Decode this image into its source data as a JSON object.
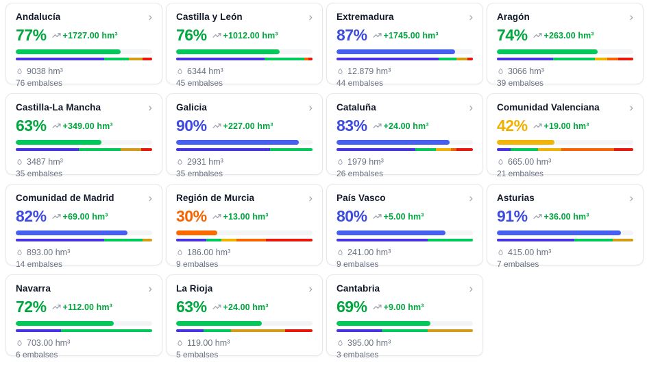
{
  "icons": {
    "chevron": "›"
  },
  "colors": {
    "status_text": {
      "green": "#00a63e",
      "blue": "#3d4be0",
      "yellow": "#efb100",
      "orange": "#f56300"
    },
    "status_bar": {
      "green": "#00c95a",
      "blue": "#4560f0",
      "yellow": "#f0b505",
      "orange": "#fb6900"
    },
    "segments": {
      "i": "#4733df",
      "g": "#00c95a",
      "y": "#f0b100",
      "a": "#d29b18",
      "o": "#f76300",
      "r": "#e7180b"
    },
    "segment_names": {
      "i": "indigo",
      "g": "green",
      "y": "yellow",
      "a": "amber",
      "o": "orange",
      "r": "red"
    },
    "track": "#f3f4f6"
  },
  "regions": [
    {
      "name": "Andalucía",
      "pct": 77,
      "pct_label": "77%",
      "status": "green",
      "change": "+1727.00 hm³",
      "volume": "9038 hm³",
      "reservoirs": "76 embalses",
      "dist": [
        [
          "i",
          65
        ],
        [
          "g",
          18
        ],
        [
          "a",
          10
        ],
        [
          "r",
          7
        ]
      ]
    },
    {
      "name": "Castilla y León",
      "pct": 76,
      "pct_label": "76%",
      "status": "green",
      "change": "+1012.00 hm³",
      "volume": "6344 hm³",
      "reservoirs": "45 embalses",
      "dist": [
        [
          "i",
          65
        ],
        [
          "g",
          29
        ],
        [
          "o",
          3
        ],
        [
          "r",
          3
        ]
      ]
    },
    {
      "name": "Extremadura",
      "pct": 87,
      "pct_label": "87%",
      "status": "blue",
      "change": "+1745.00 hm³",
      "volume": "12.879 hm³",
      "reservoirs": "44 embalses",
      "dist": [
        [
          "i",
          75
        ],
        [
          "g",
          13
        ],
        [
          "a",
          8
        ],
        [
          "r",
          4
        ]
      ]
    },
    {
      "name": "Aragón",
      "pct": 74,
      "pct_label": "74%",
      "status": "green",
      "change": "+263.00 hm³",
      "volume": "3066 hm³",
      "reservoirs": "39 embalses",
      "dist": [
        [
          "i",
          41
        ],
        [
          "g",
          31
        ],
        [
          "y",
          9
        ],
        [
          "o",
          8
        ],
        [
          "r",
          11
        ]
      ]
    },
    {
      "name": "Castilla-La Mancha",
      "pct": 63,
      "pct_label": "63%",
      "status": "green",
      "change": "+349.00 hm³",
      "volume": "3487 hm³",
      "reservoirs": "35 embalses",
      "dist": [
        [
          "i",
          46
        ],
        [
          "g",
          31
        ],
        [
          "a",
          15
        ],
        [
          "r",
          8
        ]
      ]
    },
    {
      "name": "Galicia",
      "pct": 90,
      "pct_label": "90%",
      "status": "blue",
      "change": "+227.00 hm³",
      "volume": "2931 hm³",
      "reservoirs": "35 embalses",
      "dist": [
        [
          "i",
          69
        ],
        [
          "g",
          31
        ]
      ]
    },
    {
      "name": "Cataluña",
      "pct": 83,
      "pct_label": "83%",
      "status": "blue",
      "change": "+24.00 hm³",
      "volume": "1979 hm³",
      "reservoirs": "26 embalses",
      "dist": [
        [
          "i",
          58
        ],
        [
          "g",
          15
        ],
        [
          "y",
          11
        ],
        [
          "o",
          4
        ],
        [
          "r",
          12
        ]
      ]
    },
    {
      "name": "Comunidad Valenciana",
      "pct": 42,
      "pct_label": "42%",
      "status": "yellow",
      "change": "+19.00 hm³",
      "volume": "665.00 hm³",
      "reservoirs": "21 embalses",
      "dist": [
        [
          "i",
          10
        ],
        [
          "g",
          20
        ],
        [
          "y",
          17
        ],
        [
          "o",
          39
        ],
        [
          "r",
          14
        ]
      ]
    },
    {
      "name": "Comunidad de Madrid",
      "pct": 82,
      "pct_label": "82%",
      "status": "blue",
      "change": "+69.00 hm³",
      "volume": "893.00 hm³",
      "reservoirs": "14 embalses",
      "dist": [
        [
          "i",
          65
        ],
        [
          "g",
          28
        ],
        [
          "a",
          7
        ]
      ]
    },
    {
      "name": "Región de Murcia",
      "pct": 30,
      "pct_label": "30%",
      "status": "orange",
      "change": "+13.00 hm³",
      "volume": "186.00 hm³",
      "reservoirs": "9 embalses",
      "dist": [
        [
          "i",
          22
        ],
        [
          "g",
          11
        ],
        [
          "y",
          11
        ],
        [
          "o",
          22
        ],
        [
          "r",
          34
        ]
      ]
    },
    {
      "name": "País Vasco",
      "pct": 80,
      "pct_label": "80%",
      "status": "blue",
      "change": "+5.00 hm³",
      "volume": "241.00 hm³",
      "reservoirs": "9 embalses",
      "dist": [
        [
          "i",
          67
        ],
        [
          "g",
          33
        ]
      ]
    },
    {
      "name": "Asturias",
      "pct": 91,
      "pct_label": "91%",
      "status": "blue",
      "change": "+36.00 hm³",
      "volume": "415.00 hm³",
      "reservoirs": "7 embalses",
      "dist": [
        [
          "i",
          57
        ],
        [
          "g",
          28
        ],
        [
          "a",
          15
        ]
      ]
    },
    {
      "name": "Navarra",
      "pct": 72,
      "pct_label": "72%",
      "status": "green",
      "change": "+112.00 hm³",
      "volume": "703.00 hm³",
      "reservoirs": "6 embalses",
      "dist": [
        [
          "i",
          33
        ],
        [
          "g",
          67
        ]
      ]
    },
    {
      "name": "La Rioja",
      "pct": 63,
      "pct_label": "63%",
      "status": "green",
      "change": "+24.00 hm³",
      "volume": "119.00 hm³",
      "reservoirs": "5 embalses",
      "dist": [
        [
          "i",
          20
        ],
        [
          "g",
          20
        ],
        [
          "a",
          40
        ],
        [
          "r",
          20
        ]
      ]
    },
    {
      "name": "Cantabria",
      "pct": 69,
      "pct_label": "69%",
      "status": "green",
      "change": "+9.00 hm³",
      "volume": "395.00 hm³",
      "reservoirs": "3 embalses",
      "dist": [
        [
          "i",
          33
        ],
        [
          "g",
          34
        ],
        [
          "a",
          33
        ]
      ]
    }
  ]
}
